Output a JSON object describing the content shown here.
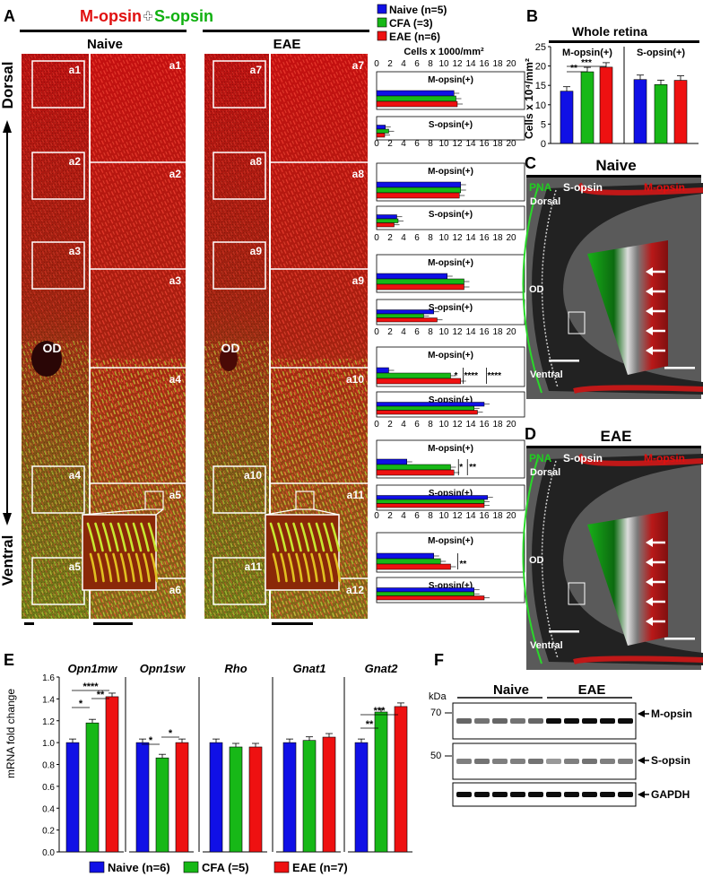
{
  "colors": {
    "naive": "#1010e6",
    "cfa": "#17b817",
    "eae": "#ee1111",
    "mopsin": "#e01010",
    "sopsin": "#10b010",
    "pna": "#20cc20"
  },
  "panel_letters": {
    "a": "A",
    "b": "B",
    "c": "C",
    "d": "D",
    "e": "E",
    "f": "F"
  },
  "panel_a": {
    "title_m": "M-opsin",
    "title_plus": "+",
    "title_s": "S-opsin",
    "col_naive": "Naive",
    "col_eae": "EAE",
    "dorsal": "Dorsal",
    "ventral": "Ventral",
    "od": "OD",
    "naive_boxes": [
      "a1",
      "a2",
      "a3",
      "a4",
      "a5",
      "a6"
    ],
    "eae_boxes": [
      "a7",
      "a8",
      "a9",
      "a10",
      "a11",
      "a12"
    ],
    "naive_zooms": [
      "a1",
      "a2",
      "a3",
      "a4",
      "a5",
      "a6"
    ],
    "eae_zooms": [
      "a7",
      "a8",
      "a9",
      "a10",
      "a11",
      "a12"
    ]
  },
  "legend_a": {
    "items": [
      "Naive (n=5)",
      "CFA (=3)",
      "EAE (n=6)"
    ]
  },
  "legend_e": {
    "items": [
      "Naive (n=6)",
      "CFA (=5)",
      "EAE (n=7)"
    ]
  },
  "chart_data": [
    {
      "type": "bar",
      "orientation": "horizontal",
      "panel": "A",
      "xlabel": "Cells x 1000/mm²",
      "xlim": [
        0,
        20
      ],
      "ticks": [
        0,
        2,
        4,
        6,
        8,
        10,
        12,
        14,
        16,
        18,
        20
      ],
      "series_names": [
        "Naive (n=5)",
        "CFA (=3)",
        "EAE (n=6)"
      ],
      "groups": [
        {
          "label": "M-opsin(+)",
          "region": "a1/a7",
          "values": [
            11.5,
            11.8,
            12.0
          ],
          "sig": []
        },
        {
          "label": "S-opsin(+)",
          "region": "a1/a7",
          "values": [
            1.3,
            1.8,
            1.2
          ],
          "sig": []
        },
        {
          "label": "M-opsin(+)",
          "region": "a2/a8",
          "values": [
            12.5,
            12.5,
            12.3
          ],
          "sig": []
        },
        {
          "label": "S-opsin(+)",
          "region": "a2/a8",
          "values": [
            3.0,
            3.2,
            2.6
          ],
          "sig": []
        },
        {
          "label": "M-opsin(+)",
          "region": "a3/a9",
          "values": [
            10.5,
            13.0,
            13.0
          ],
          "sig": []
        },
        {
          "label": "S-opsin(+)",
          "region": "a3/a9",
          "values": [
            8.5,
            7.0,
            9.0
          ],
          "sig": []
        },
        {
          "label": "M-opsin(+)",
          "region": "a4/a10",
          "values": [
            1.8,
            11.0,
            12.5
          ],
          "sig": [
            "*",
            "****",
            "****"
          ]
        },
        {
          "label": "S-opsin(+)",
          "region": "a4/a10",
          "values": [
            16.0,
            14.5,
            15.0
          ],
          "sig": []
        },
        {
          "label": "M-opsin(+)",
          "region": "a5/a11",
          "values": [
            4.5,
            11.0,
            11.5
          ],
          "sig": [
            "*",
            "**"
          ]
        },
        {
          "label": "S-opsin(+)",
          "region": "a5/a11",
          "values": [
            16.5,
            16.0,
            16.0
          ],
          "sig": []
        },
        {
          "label": "M-opsin(+)",
          "region": "a6/a12",
          "values": [
            8.5,
            9.5,
            11.0
          ],
          "sig": [
            "**"
          ]
        },
        {
          "label": "S-opsin(+)",
          "region": "a6/a12",
          "values": [
            14.5,
            14.5,
            16.0
          ],
          "sig": []
        }
      ]
    },
    {
      "type": "bar",
      "panel": "B",
      "title": "Whole retina",
      "ylabel": "Cells x 10⁴/mm²",
      "ylim": [
        0,
        25
      ],
      "ticks": [
        0,
        5,
        10,
        15,
        20,
        25
      ],
      "groups": [
        {
          "label": "M-opsin(+)",
          "values": [
            13.5,
            18.5,
            19.7
          ],
          "sig": [
            "**",
            "***"
          ]
        },
        {
          "label": "S-opsin(+)",
          "values": [
            16.5,
            15.2,
            16.3
          ],
          "sig": []
        }
      ]
    },
    {
      "type": "bar",
      "panel": "E",
      "ylabel": "mRNA fold change",
      "ylim": [
        0,
        1.6
      ],
      "ticks": [
        0.0,
        0.2,
        0.4,
        0.6,
        0.8,
        1.0,
        1.2,
        1.4,
        1.6
      ],
      "ticklabels": [
        "0.0",
        "0.2",
        "0.4",
        "0.6",
        "0.8",
        "1.0",
        "1.2",
        "1.4",
        "1.6"
      ],
      "groups": [
        {
          "label": "Opn1mw",
          "values": [
            1.0,
            1.18,
            1.42
          ],
          "sig": [
            "*",
            "****",
            "**"
          ]
        },
        {
          "label": "Opn1sw",
          "values": [
            1.0,
            0.86,
            1.0
          ],
          "sig": [
            "*",
            "*"
          ]
        },
        {
          "label": "Rho",
          "values": [
            1.0,
            0.96,
            0.96
          ],
          "sig": []
        },
        {
          "label": "Gnat1",
          "values": [
            1.0,
            1.02,
            1.05
          ],
          "sig": []
        },
        {
          "label": "Gnat2",
          "values": [
            1.0,
            1.28,
            1.33
          ],
          "sig": [
            "**",
            "***"
          ]
        }
      ]
    }
  ],
  "panel_c": {
    "title": "Naive",
    "pna": "PNA",
    "sopsin": "S-opsin",
    "mopsin": "M-opsin",
    "dorsal": "Dorsal",
    "od": "OD",
    "ventral": "Ventral"
  },
  "panel_d": {
    "title": "EAE",
    "pna": "PNA",
    "sopsin": "S-opsin",
    "mopsin": "M-opsin",
    "dorsal": "Dorsal",
    "od": "OD",
    "ventral": "Ventral"
  },
  "panel_f": {
    "kda": "kDa",
    "mw70": "70",
    "mw50": "50",
    "naive": "Naive",
    "eae": "EAE",
    "m": "M-opsin",
    "s": "S-opsin",
    "gapdh": "GAPDH"
  }
}
